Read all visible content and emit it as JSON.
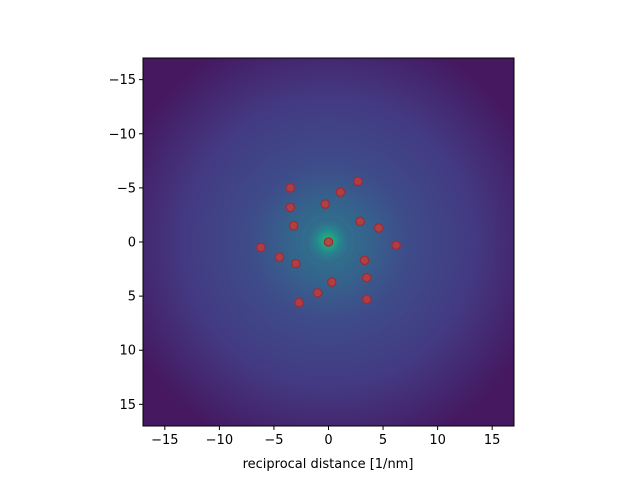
{
  "chart_data": {
    "type": "scatter",
    "title": "",
    "xlabel": "reciprocal distance [1/nm]",
    "ylabel": "",
    "xlim": [
      -17,
      17
    ],
    "ylim": [
      17,
      -17
    ],
    "y_inverted": true,
    "grid": false,
    "legend": "none",
    "background": "diffraction image (viridis colormap), bright centre with faint concentric rings",
    "xticks": [
      -15,
      -10,
      -5,
      0,
      5,
      10,
      15
    ],
    "yticks": [
      -15,
      -10,
      -5,
      0,
      5,
      10,
      15
    ],
    "xtick_labels": [
      "−15",
      "−10",
      "−5",
      "0",
      "5",
      "10",
      "15"
    ],
    "ytick_labels": [
      "−15",
      "−10",
      "−5",
      "0",
      "5",
      "10",
      "15"
    ],
    "marker_color": "#c43a3a",
    "points": [
      {
        "x": 0.0,
        "y": 0.0
      },
      {
        "x": -3.5,
        "y": -5.0
      },
      {
        "x": -3.5,
        "y": -3.2
      },
      {
        "x": -3.2,
        "y": -1.5
      },
      {
        "x": -0.3,
        "y": -3.5
      },
      {
        "x": 1.1,
        "y": -4.6
      },
      {
        "x": 2.7,
        "y": -5.6
      },
      {
        "x": 2.9,
        "y": -1.9
      },
      {
        "x": 4.6,
        "y": -1.3
      },
      {
        "x": 6.2,
        "y": 0.3
      },
      {
        "x": -6.2,
        "y": 0.5
      },
      {
        "x": -4.5,
        "y": 1.4
      },
      {
        "x": -3.0,
        "y": 2.0
      },
      {
        "x": 3.3,
        "y": 1.7
      },
      {
        "x": 3.5,
        "y": 3.3
      },
      {
        "x": 0.3,
        "y": 3.7
      },
      {
        "x": -1.0,
        "y": 4.7
      },
      {
        "x": -2.7,
        "y": 5.6
      },
      {
        "x": 3.5,
        "y": 5.3
      }
    ]
  }
}
